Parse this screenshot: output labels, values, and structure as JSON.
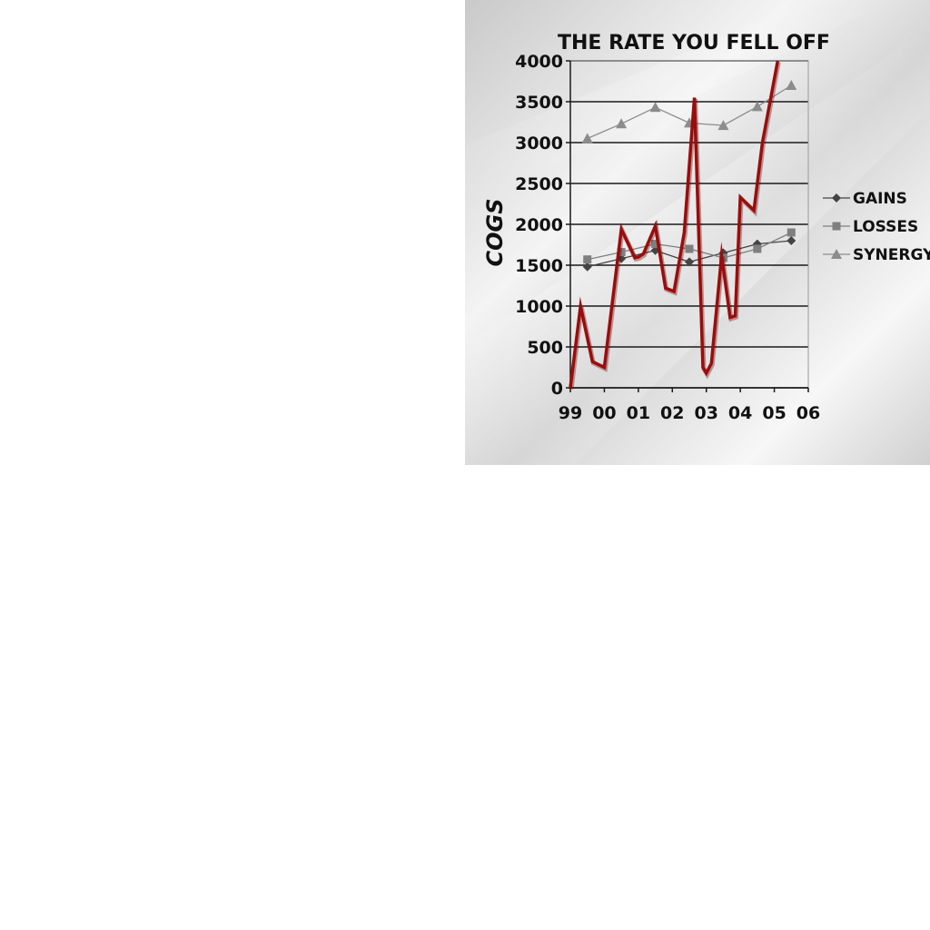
{
  "chart_data": {
    "type": "line",
    "title": "THE RATE YOU FELL OFF",
    "ylabel": "COGS",
    "xlabel": "",
    "ylim": [
      0,
      4000
    ],
    "yticks": [
      0,
      500,
      1000,
      1500,
      2000,
      2500,
      3000,
      3500,
      4000
    ],
    "xticks": [
      "99",
      "00",
      "01",
      "02",
      "03",
      "04",
      "05",
      "06"
    ],
    "grid": true,
    "legend_position": "right",
    "series": [
      {
        "name": "GAINS",
        "marker": "diamond",
        "color": "#444444",
        "x": [
          1999.5,
          2000.5,
          2001.5,
          2002.5,
          2003.5,
          2004.5,
          2005.5
        ],
        "values": [
          1480,
          1580,
          1680,
          1540,
          1650,
          1760,
          1800
        ]
      },
      {
        "name": "LOSSES",
        "marker": "square",
        "color": "#7f7f7f",
        "x": [
          1999.5,
          2000.5,
          2001.5,
          2002.5,
          2003.5,
          2004.5,
          2005.5
        ],
        "values": [
          1570,
          1660,
          1760,
          1700,
          1590,
          1700,
          1900
        ]
      },
      {
        "name": "SYNERGY",
        "marker": "triangle",
        "color": "#8c8c8c",
        "x": [
          1999.5,
          2000.5,
          2001.5,
          2002.5,
          2003.5,
          2004.5,
          2005.5
        ],
        "values": [
          3050,
          3230,
          3430,
          3240,
          3210,
          3440,
          3700
        ]
      }
    ],
    "annotation_line": {
      "color": "#9b0c0c",
      "x": [
        1999.0,
        1999.3,
        1999.65,
        2000.0,
        2000.5,
        2000.9,
        2001.0,
        2001.15,
        2001.5,
        2001.8,
        2002.05,
        2002.35,
        2002.65,
        2002.9,
        2003.0,
        2003.15,
        2003.45,
        2003.7,
        2003.85,
        2004.0,
        2004.4,
        2004.65,
        2005.1
      ],
      "values": [
        0,
        1000,
        320,
        250,
        1940,
        1590,
        1600,
        1640,
        1980,
        1220,
        1180,
        1900,
        3550,
        250,
        180,
        300,
        1620,
        860,
        880,
        2330,
        2170,
        3000,
        4000
      ]
    }
  }
}
